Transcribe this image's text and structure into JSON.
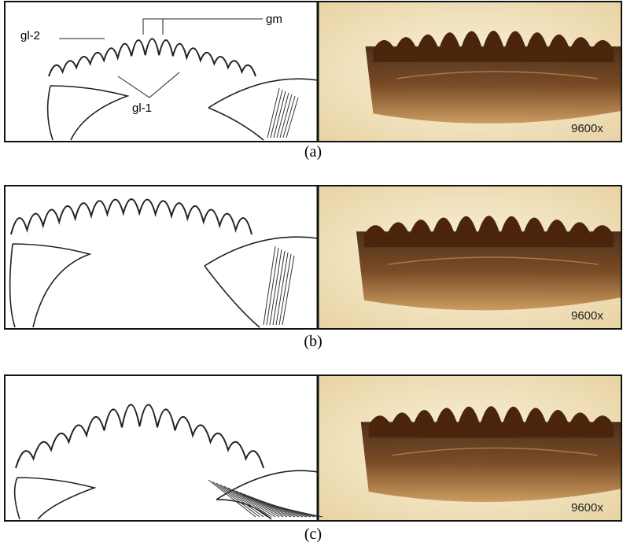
{
  "panels": [
    {
      "label": "(a)",
      "annotations": [
        "gl-2",
        "gm",
        "gl-1"
      ],
      "magnification": "9600x"
    },
    {
      "label": "(b)",
      "magnification": "9600x"
    },
    {
      "label": "(c)",
      "magnification": "9600x"
    }
  ]
}
